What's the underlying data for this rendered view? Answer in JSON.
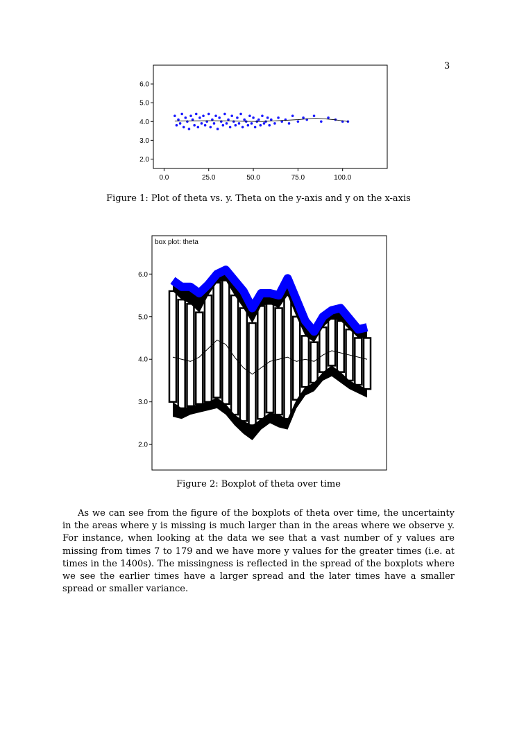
{
  "page": {
    "number": "3"
  },
  "figure1": {
    "caption": "Figure 1: Plot of theta vs. y. Theta on the y-axis and y on the x-axis",
    "chart_data": {
      "type": "scatter",
      "title": "",
      "xlabel": "",
      "ylabel": "",
      "xlim": [
        -6,
        125
      ],
      "ylim": [
        1.5,
        7.0
      ],
      "x_ticks": [
        "0.0",
        "25.0",
        "50.0",
        "75.0",
        "100.0"
      ],
      "x_tick_values": [
        0,
        25,
        50,
        75,
        100
      ],
      "y_ticks": [
        "2.0",
        "3.0",
        "4.0",
        "5.0",
        "6.0"
      ],
      "y_tick_values": [
        2,
        3,
        4,
        5,
        6
      ],
      "point_color": "#1a1aff",
      "series": [
        {
          "x": [
            6,
            7,
            8,
            9,
            10,
            11,
            12,
            13,
            14,
            15,
            16,
            17,
            18,
            19,
            20,
            21,
            22,
            23,
            24,
            25,
            26,
            27,
            28,
            29,
            30,
            31,
            32,
            33,
            34,
            35,
            36,
            37,
            38,
            39,
            40,
            41,
            42,
            43,
            44,
            45,
            46,
            47,
            48,
            49,
            50,
            51,
            52,
            53,
            54,
            55,
            56,
            57,
            58,
            59,
            60,
            62,
            64,
            66,
            68,
            70,
            72,
            75,
            78,
            80,
            84,
            88,
            92,
            96,
            100,
            103
          ],
          "y": [
            4.3,
            3.8,
            4.1,
            3.9,
            4.4,
            3.7,
            4.2,
            4.0,
            3.6,
            4.3,
            4.1,
            3.8,
            4.4,
            3.7,
            4.2,
            3.9,
            4.3,
            3.8,
            4.0,
            4.4,
            3.7,
            4.1,
            3.9,
            4.3,
            3.6,
            4.2,
            4.0,
            3.8,
            4.4,
            3.9,
            4.1,
            3.7,
            4.3,
            4.0,
            3.8,
            4.2,
            3.9,
            4.4,
            3.7,
            4.1,
            4.0,
            3.8,
            4.3,
            3.9,
            4.2,
            3.7,
            4.0,
            4.1,
            3.8,
            4.3,
            3.9,
            4.0,
            4.2,
            3.8,
            4.1,
            3.9,
            4.2,
            4.0,
            4.1,
            3.9,
            4.3,
            4.0,
            4.2,
            4.1,
            4.3,
            4.0,
            4.2,
            4.1,
            4.0,
            4.0
          ]
        }
      ],
      "smoother": {
        "x": [
          6,
          15,
          25,
          35,
          45,
          55,
          65,
          75,
          85,
          95,
          103
        ],
        "y": [
          4.02,
          4.03,
          4.04,
          4.03,
          4.01,
          4.0,
          4.05,
          4.1,
          4.18,
          4.1,
          4.0
        ]
      }
    }
  },
  "figure2": {
    "caption": "Figure 2: Boxplot of theta over time",
    "chart_data": {
      "type": "box",
      "title": "box plot: theta",
      "xlabel": "",
      "ylabel": "",
      "ylim": [
        1.4,
        6.9
      ],
      "y_ticks": [
        "2.0",
        "3.0",
        "4.0",
        "5.0",
        "6.0"
      ],
      "y_tick_values": [
        2,
        3,
        4,
        5,
        6
      ],
      "max_color": "#0000ff",
      "box_color": "#000000",
      "upper_whisker": [
        5.85,
        5.7,
        5.7,
        5.55,
        5.75,
        6.0,
        6.1,
        5.85,
        5.6,
        5.2,
        5.55,
        5.55,
        5.5,
        5.9,
        5.4,
        4.9,
        4.65,
        5.0,
        5.15,
        5.2,
        4.95,
        4.7,
        4.75
      ],
      "upper_quartile": [
        5.6,
        5.4,
        5.3,
        5.1,
        5.5,
        5.8,
        5.85,
        5.5,
        5.2,
        4.85,
        5.25,
        5.3,
        5.2,
        5.5,
        5.0,
        4.55,
        4.4,
        4.75,
        4.95,
        4.9,
        4.7,
        4.5,
        4.5
      ],
      "median": [
        4.05,
        4.0,
        3.95,
        4.05,
        4.25,
        4.45,
        4.35,
        4.05,
        3.8,
        3.65,
        3.8,
        3.95,
        4.0,
        4.05,
        3.95,
        4.0,
        3.95,
        4.1,
        4.2,
        4.15,
        4.1,
        4.05,
        4.0
      ],
      "lower_quartile": [
        3.0,
        2.85,
        2.9,
        2.95,
        3.0,
        3.1,
        2.95,
        2.7,
        2.55,
        2.45,
        2.6,
        2.75,
        2.7,
        2.6,
        3.05,
        3.35,
        3.45,
        3.7,
        3.85,
        3.7,
        3.5,
        3.4,
        3.3
      ],
      "lower_whisker": [
        2.65,
        2.6,
        2.7,
        2.75,
        2.8,
        2.85,
        2.7,
        2.45,
        2.25,
        2.1,
        2.35,
        2.5,
        2.4,
        2.35,
        2.85,
        3.15,
        3.25,
        3.5,
        3.6,
        3.45,
        3.3,
        3.2,
        3.1
      ]
    }
  },
  "body": {
    "paragraph": "As we can see from the figure of the boxplots of theta over time, the uncertainty in the areas where y is missing is much larger than in the areas where we observe y. For instance, when looking at the data we see that a vast number of y values are missing from times 7 to 179 and we have more y values for the greater times (i.e. at times in the 1400s). The missingness is reflected in the spread of the boxplots where we see the earlier times have a larger spread and the later times have a smaller spread or smaller variance."
  }
}
